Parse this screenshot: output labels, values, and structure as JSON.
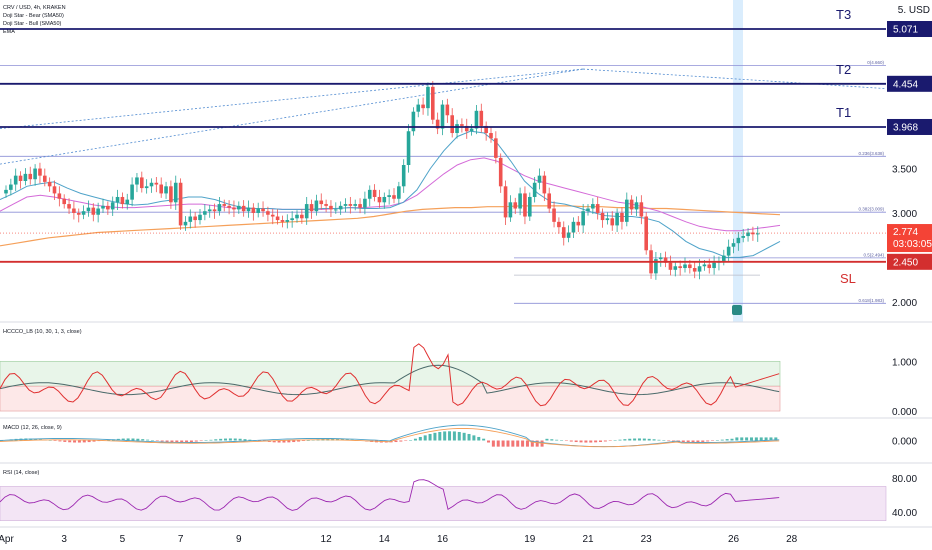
{
  "legend": {
    "symbol": "CRV / USD, 4h, KRAKEN",
    "lines": [
      "Doji Star - Bear (SMA50)",
      "Doji Star - Bull (SMA50)",
      "EMA"
    ]
  },
  "colors": {
    "up": "#26a69a",
    "down": "#ef5350",
    "target": "#1a1a6e",
    "stop": "#d32f2f",
    "ema_fast": "#4fa3c9",
    "ema_mid": "#d46ad8",
    "ema_slow": "#f5a05a",
    "fib": "#8c8fd6",
    "trend": "#4f8ad0",
    "price_tag": "#f44336"
  },
  "price_axis": {
    "unit_label": "5. USD",
    "ticks": [
      {
        "v": 3.5,
        "label": "3.500"
      },
      {
        "v": 3.0,
        "label": "3.000"
      },
      {
        "v": 2.0,
        "label": "2.000"
      }
    ]
  },
  "levels": [
    {
      "name": "T3",
      "value": 5.071,
      "label": "5.071"
    },
    {
      "name": "T2",
      "value": 4.454,
      "label": "4.454"
    },
    {
      "name": "T1",
      "value": 3.968,
      "label": "3.968"
    },
    {
      "name": "SL",
      "value": 2.45,
      "label": "2.450"
    }
  ],
  "fib_levels": [
    {
      "value": 4.66,
      "label": "0(4.660)"
    },
    {
      "value": 3.638,
      "label": "0.236(3.638)"
    },
    {
      "value": 3.009,
      "label": "0.382(3.009)"
    },
    {
      "value": 2.494,
      "label": "0.5(2.494)"
    },
    {
      "value": 1.983,
      "label": "0.618(1.983)"
    }
  ],
  "current_price": {
    "value": 2.774,
    "label": "2.774",
    "countdown": "03:03:05"
  },
  "x_axis": {
    "labels": [
      {
        "i": 0,
        "label": "Apr"
      },
      {
        "i": 12,
        "label": "3"
      },
      {
        "i": 24,
        "label": "5"
      },
      {
        "i": 36,
        "label": "7"
      },
      {
        "i": 48,
        "label": "9"
      },
      {
        "i": 66,
        "label": "12"
      },
      {
        "i": 78,
        "label": "14"
      },
      {
        "i": 90,
        "label": "16"
      },
      {
        "i": 108,
        "label": "19"
      },
      {
        "i": 120,
        "label": "21"
      },
      {
        "i": 132,
        "label": "23"
      },
      {
        "i": 150,
        "label": "26"
      },
      {
        "i": 162,
        "label": "28"
      }
    ]
  },
  "chart_data": {
    "type": "candlestick",
    "symbol": "CRV / USD",
    "interval": "4h",
    "exchange": "KRAKEN",
    "y_range": [
      1.84,
      5.33
    ],
    "candles_close": [
      3.26,
      3.32,
      3.42,
      3.36,
      3.44,
      3.38,
      3.5,
      3.42,
      3.35,
      3.3,
      3.22,
      3.16,
      3.1,
      3.05,
      3.0,
      2.98,
      3.02,
      3.06,
      2.98,
      3.05,
      3.08,
      3.04,
      3.12,
      3.18,
      3.1,
      3.15,
      3.32,
      3.4,
      3.28,
      3.3,
      3.34,
      3.32,
      3.22,
      3.3,
      3.12,
      3.34,
      2.86,
      2.9,
      2.96,
      2.92,
      2.98,
      3.02,
      3.04,
      3.02,
      3.1,
      3.08,
      3.06,
      3.04,
      3.08,
      3.02,
      3.06,
      3.0,
      3.05,
      3.02,
      2.98,
      2.96,
      2.92,
      2.9,
      2.92,
      2.94,
      2.98,
      2.94,
      3.1,
      3.02,
      3.14,
      3.1,
      3.08,
      3.04,
      3.04,
      3.08,
      3.1,
      3.08,
      3.1,
      3.06,
      3.16,
      3.26,
      3.18,
      3.12,
      3.18,
      3.2,
      3.16,
      3.3,
      3.54,
      3.92,
      4.14,
      4.22,
      4.18,
      4.42,
      4.05,
      3.95,
      4.22,
      4.1,
      3.9,
      4.0,
      3.98,
      3.92,
      3.95,
      4.15,
      3.98,
      3.9,
      3.84,
      3.62,
      3.3,
      2.95,
      3.12,
      3.05,
      3.22,
      2.96,
      3.18,
      3.34,
      3.42,
      3.22,
      3.05,
      2.9,
      2.84,
      2.72,
      2.78,
      2.9,
      2.86,
      3.02,
      3.05,
      3.1,
      3.0,
      2.92,
      2.94,
      2.86,
      3.0,
      2.9,
      3.15,
      3.04,
      3.12,
      2.96,
      2.58,
      2.32,
      2.48,
      2.5,
      2.44,
      2.36,
      2.4,
      2.38,
      2.42,
      2.38,
      2.34,
      2.4,
      2.42,
      2.38,
      2.44,
      2.46,
      2.52,
      2.62,
      2.66,
      2.72,
      2.74,
      2.78,
      2.76,
      2.77
    ],
    "ema_fast_approx": [
      3.15,
      3.22,
      3.3,
      3.33,
      3.35,
      3.28,
      3.22,
      3.18,
      3.14,
      3.11,
      3.09,
      3.1,
      3.13,
      3.15,
      3.18,
      3.18,
      3.15,
      3.1,
      3.06,
      3.05,
      3.05,
      3.04,
      3.04,
      3.04,
      3.05,
      3.05,
      3.06,
      3.05,
      3.05,
      3.06,
      3.12,
      3.26,
      3.5,
      3.7,
      3.86,
      3.92,
      3.9,
      3.78,
      3.58,
      3.36,
      3.22,
      3.12,
      3.1,
      3.06,
      3.01,
      2.97,
      2.96,
      2.96,
      2.94,
      2.9,
      2.8,
      2.68,
      2.6,
      2.56,
      2.5,
      2.5,
      2.52,
      2.6,
      2.68
    ],
    "ema_mid_approx": [
      3.02,
      3.1,
      3.18,
      3.2,
      3.18,
      3.15,
      3.12,
      3.09,
      3.07,
      3.06,
      3.06,
      3.07,
      3.08,
      3.09,
      3.1,
      3.1,
      3.08,
      3.06,
      3.05,
      3.05,
      3.05,
      3.04,
      3.04,
      3.04,
      3.04,
      3.05,
      3.06,
      3.06,
      3.07,
      3.08,
      3.12,
      3.2,
      3.32,
      3.44,
      3.54,
      3.6,
      3.62,
      3.58,
      3.5,
      3.42,
      3.36,
      3.32,
      3.28,
      3.24,
      3.2,
      3.16,
      3.12,
      3.1,
      3.06,
      3.02,
      2.96,
      2.9,
      2.85,
      2.82,
      2.8,
      2.8,
      2.82,
      2.84,
      2.86
    ],
    "ema_slow_approx": [
      2.63,
      2.66,
      2.69,
      2.72,
      2.74,
      2.76,
      2.78,
      2.79,
      2.8,
      2.81,
      2.82,
      2.83,
      2.84,
      2.85,
      2.86,
      2.87,
      2.88,
      2.89,
      2.9,
      2.91,
      2.92,
      2.93,
      2.94,
      2.96,
      2.99,
      3.02,
      3.04,
      3.05,
      3.06,
      3.06,
      3.07,
      3.07,
      3.08,
      3.08,
      3.08,
      3.08,
      3.07,
      3.07,
      3.06,
      3.06,
      3.05,
      3.05,
      3.04,
      3.03,
      3.02,
      3.01,
      3.0,
      2.99,
      2.98
    ],
    "hccco": {
      "title": "HCCCO_LB (10, 30, 1, 3, close)",
      "ticks": [
        {
          "v": 1.0,
          "label": "1.000"
        },
        {
          "v": 0.0,
          "label": "0.000"
        }
      ],
      "y_range": [
        -0.1,
        1.75
      ]
    },
    "macd": {
      "title": "MACD (12, 26, close, 9)",
      "ticks": [
        {
          "v": 0.0,
          "label": "0.000"
        }
      ],
      "y_range": [
        -0.2,
        0.2
      ]
    },
    "rsi": {
      "title": "RSI (14, close)",
      "ticks": [
        {
          "v": 80,
          "label": "80.00"
        },
        {
          "v": 40,
          "label": "40.00"
        }
      ],
      "y_range": [
        25,
        95
      ]
    }
  }
}
